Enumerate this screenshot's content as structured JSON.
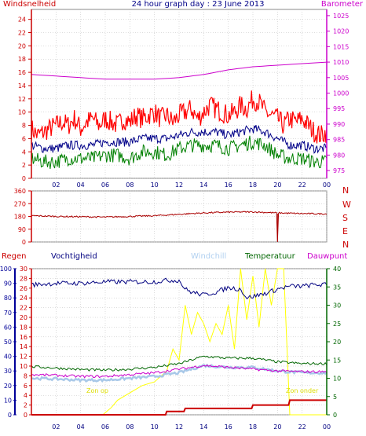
{
  "header": {
    "title": "24 hour graph day : 23 June 2013",
    "left_label": "Windsnelheid",
    "right_label": "Barometer"
  },
  "labels": {
    "regen": "Regen",
    "vochtigheid": "Vochtigheid",
    "windchill": "Windchill",
    "temperatuur": "Temperatuur",
    "dauwpunt": "Dauwpunt",
    "zon_op": "Zon op",
    "zon_onder": "Zon onder"
  },
  "colors": {
    "wind_axis": "#cc0000",
    "baro_axis": "#cc00cc",
    "wind_gust": "#ff0000",
    "wind_avg_blue": "#000088",
    "wind_green": "#008000",
    "barometer": "#cc00cc",
    "direction": "#aa0000",
    "humidity": "#000080",
    "humidity_axis": "#000099",
    "regen": "#cc0000",
    "windchill": "#a8c8e8",
    "temperature": "#006600",
    "dewpoint": "#cc00cc",
    "solar": "#ffff00",
    "grid": "#bbbbbb",
    "frame": "#888888"
  },
  "chart_data": [
    {
      "type": "line",
      "title": "24 hour graph day : 23 June 2013",
      "ylabel": "Windsnelheid",
      "y2label": "Barometer",
      "xticks": [
        "02",
        "04",
        "06",
        "08",
        "10",
        "12",
        "14",
        "16",
        "18",
        "20",
        "22",
        "00"
      ],
      "yticks": [
        0,
        2,
        4,
        6,
        8,
        10,
        12,
        14,
        16,
        18,
        20,
        22,
        24
      ],
      "y2ticks": [
        975,
        980,
        985,
        990,
        995,
        1000,
        1005,
        1010,
        1015,
        1020,
        1025
      ],
      "ylim": [
        0,
        25.5
      ],
      "y2lim": [
        972.5,
        1027
      ],
      "grid": true,
      "series": [
        {
          "name": "Windsnelheid",
          "axis": "left",
          "color": "#ff0000",
          "x": [
            0,
            0.5,
            1,
            1.5,
            2,
            2.5,
            3,
            3.5,
            4,
            4.5,
            5,
            5.5,
            6,
            6.5,
            7,
            7.5,
            8,
            8.5,
            9,
            9.5,
            10,
            10.5,
            11,
            11.5,
            12,
            12.5,
            13,
            13.5,
            14,
            14.5,
            15,
            15.5,
            16,
            16.5,
            17,
            17.5,
            18,
            18.5,
            19,
            19.5,
            20,
            20.5,
            21,
            21.5,
            22,
            22.5,
            23,
            23.5,
            24
          ],
          "values": [
            7.5,
            6.5,
            7,
            7.5,
            8,
            8.5,
            8,
            9,
            7.5,
            8.5,
            9,
            8,
            9,
            8.5,
            8,
            9,
            8.5,
            9.5,
            9,
            9.5,
            10,
            9,
            9.5,
            8.5,
            9.5,
            10,
            10.5,
            9,
            10,
            11,
            10.5,
            10,
            9.5,
            10,
            11,
            10.5,
            12,
            11.5,
            10,
            9.5,
            9,
            8,
            9,
            8.5,
            9,
            8,
            7,
            6.5,
            7
          ]
        },
        {
          "name": "",
          "axis": "left",
          "color": "#000088",
          "x": [
            0,
            1,
            2,
            3,
            4,
            5,
            6,
            7,
            8,
            9,
            10,
            11,
            12,
            13,
            14,
            15,
            16,
            17,
            18,
            19,
            20,
            21,
            22,
            23,
            24
          ],
          "values": [
            5,
            4.5,
            4.5,
            5,
            5,
            5,
            5.5,
            5.5,
            5.5,
            6,
            6,
            6,
            6.5,
            7,
            7,
            7,
            6.5,
            7,
            7.5,
            7,
            6,
            5,
            5,
            4.5,
            4.5
          ]
        },
        {
          "name": "",
          "axis": "left",
          "color": "#008000",
          "x": [
            0,
            1,
            2,
            3,
            4,
            5,
            6,
            7,
            8,
            9,
            10,
            11,
            12,
            13,
            14,
            15,
            16,
            17,
            18,
            19,
            20,
            21,
            22,
            23,
            24
          ],
          "values": [
            3,
            2.5,
            2.5,
            3,
            3,
            3,
            3.5,
            3.5,
            3,
            4,
            4,
            3.5,
            4.5,
            5,
            5,
            5,
            4.5,
            5,
            5.5,
            5,
            3.5,
            3,
            3,
            2.5,
            2.5
          ]
        },
        {
          "name": "Barometer",
          "axis": "right",
          "color": "#cc00cc",
          "x": [
            0,
            2,
            4,
            6,
            8,
            10,
            12,
            14,
            16,
            18,
            20,
            22,
            24
          ],
          "values": [
            1006,
            1005.5,
            1005,
            1004.5,
            1004.5,
            1004.5,
            1005,
            1006,
            1007.5,
            1008.5,
            1009,
            1009.5,
            1010
          ]
        }
      ]
    },
    {
      "type": "line",
      "ytics": [
        0,
        90,
        180,
        270,
        360
      ],
      "ylim": [
        0,
        360
      ],
      "compass_labels": [
        "N",
        "W",
        "S",
        "E",
        "N"
      ],
      "grid": true,
      "series": [
        {
          "name": "",
          "color": "#aa0000",
          "x": [
            0,
            2,
            4,
            6,
            8,
            10,
            12,
            14,
            16,
            18,
            19.99,
            20,
            20.05,
            22,
            24
          ],
          "values": [
            185,
            180,
            178,
            175,
            180,
            185,
            195,
            205,
            210,
            212,
            205,
            0,
            205,
            200,
            198
          ]
        }
      ]
    },
    {
      "type": "line",
      "xticks": [
        "02",
        "04",
        "06",
        "08",
        "10",
        "12",
        "14",
        "16",
        "18",
        "20",
        "22",
        "00"
      ],
      "regen_ticks": [
        0,
        2,
        4,
        6,
        8,
        10,
        12,
        14,
        16,
        18,
        20,
        22,
        24,
        26,
        28,
        30
      ],
      "regen_ylim": [
        0,
        30
      ],
      "humidity_ticks": [
        0,
        10,
        20,
        30,
        40,
        50,
        60,
        70,
        80,
        90,
        100
      ],
      "humidity_ylim": [
        0,
        100
      ],
      "temp_ticks": [
        0,
        5,
        10,
        15,
        20,
        25,
        30,
        35,
        40
      ],
      "temp_ylim": [
        0,
        40
      ],
      "grid": true,
      "series": [
        {
          "name": "Vochtigheid",
          "axis": "humidity",
          "color": "#000080",
          "x": [
            0,
            2,
            4,
            6,
            8,
            10,
            11,
            12,
            12.5,
            13,
            14,
            15,
            16,
            17,
            17.5,
            18,
            19,
            20,
            21,
            22,
            23,
            24
          ],
          "values": [
            89,
            90,
            90,
            91,
            91,
            91,
            92,
            92,
            86,
            84,
            82,
            84,
            87,
            86,
            80,
            81,
            83,
            86,
            88,
            88,
            89,
            89
          ]
        },
        {
          "name": "Regen",
          "axis": "regen",
          "color": "#cc0000",
          "x": [
            0,
            10.9,
            11,
            12.4,
            12.5,
            17.9,
            18,
            20.9,
            21,
            24
          ],
          "values": [
            0,
            0,
            0.7,
            0.7,
            1.3,
            1.3,
            2,
            2,
            3,
            3
          ]
        },
        {
          "name": "Windchill",
          "axis": "temp",
          "color": "#a8c8e8",
          "x": [
            0,
            2,
            4,
            6,
            8,
            10,
            12,
            14,
            16,
            18,
            20,
            22,
            24
          ],
          "values": [
            10,
            9.8,
            9.5,
            9.5,
            10,
            10.5,
            11.5,
            13.5,
            13,
            13,
            12,
            11.5,
            11.5
          ]
        },
        {
          "name": "Temperatuur",
          "axis": "temp",
          "color": "#006600",
          "x": [
            0,
            2,
            4,
            6,
            8,
            10,
            12,
            14,
            16,
            18,
            20,
            22,
            24
          ],
          "values": [
            13.2,
            12.8,
            12.4,
            12.2,
            12.5,
            13,
            14,
            16,
            15.5,
            15.5,
            14.5,
            14,
            14
          ]
        },
        {
          "name": "Dauwpunt",
          "axis": "temp",
          "color": "#cc00cc",
          "x": [
            0,
            2,
            4,
            6,
            8,
            10,
            12,
            14,
            16,
            18,
            20,
            22,
            24
          ],
          "values": [
            11,
            10.8,
            10.5,
            10.5,
            11,
            11.5,
            12.5,
            13.5,
            13,
            12.5,
            12,
            11.8,
            11.8
          ]
        },
        {
          "name": "",
          "axis": "temp",
          "color": "#ffff00",
          "x": [
            0,
            5.8,
            6.5,
            7,
            8,
            9,
            10,
            11,
            11.5,
            12,
            12.5,
            13,
            13.5,
            14,
            14.5,
            15,
            15.5,
            16,
            16.5,
            17,
            17.5,
            18,
            18.5,
            19,
            19.5,
            20,
            20.5,
            21,
            21.5,
            22,
            24
          ],
          "values": [
            0,
            0,
            2,
            4,
            6,
            8,
            9,
            12,
            18,
            15,
            30,
            22,
            28,
            25,
            20,
            25,
            22,
            30,
            18,
            40,
            26,
            38,
            24,
            40,
            30,
            40,
            40,
            0,
            0,
            0,
            0
          ]
        }
      ]
    }
  ]
}
